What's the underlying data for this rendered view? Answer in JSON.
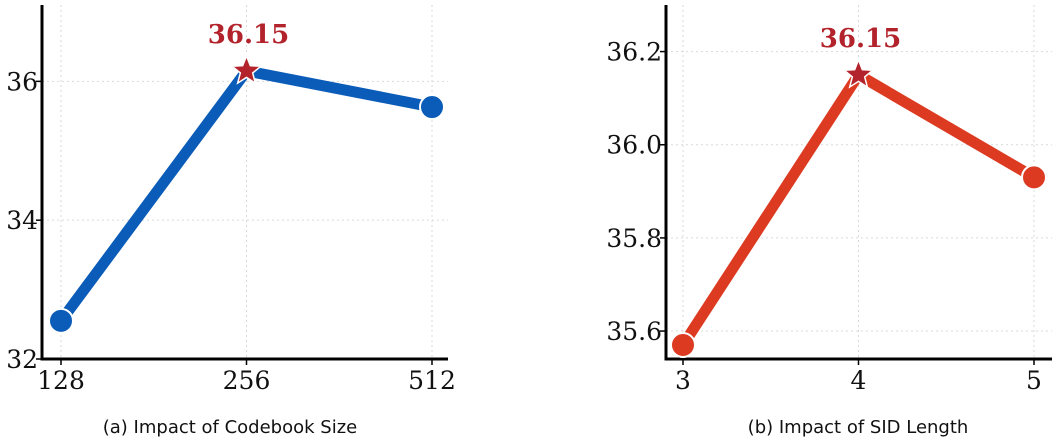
{
  "chart_data": [
    {
      "type": "line",
      "title": "",
      "xlabel": "",
      "ylabel": "",
      "caption": "(a) Impact of Codebook Size",
      "categories": [
        "128",
        "256",
        "512"
      ],
      "values": [
        32.55,
        36.15,
        35.63
      ],
      "ylim": [
        32,
        37.1
      ],
      "yticks": [
        32,
        34,
        36
      ],
      "ytick_labels": [
        "32",
        "34",
        "36"
      ],
      "highlight_index": 1,
      "highlight_label": "36.15",
      "color": "#0a5cb8",
      "highlight_color": "#b3232b",
      "grid": true,
      "legend": "none"
    },
    {
      "type": "line",
      "title": "",
      "xlabel": "",
      "ylabel": "",
      "caption": "(b) Impact of SID Length",
      "categories": [
        "3",
        "4",
        "5"
      ],
      "values": [
        35.57,
        36.15,
        35.93
      ],
      "ylim": [
        35.54,
        36.3
      ],
      "yticks": [
        35.6,
        35.8,
        36.0,
        36.2
      ],
      "ytick_labels": [
        "35.6",
        "35.8",
        "36.0",
        "36.2"
      ],
      "highlight_index": 1,
      "highlight_label": "36.15",
      "color": "#dd3a22",
      "highlight_color": "#b3232b",
      "grid": true,
      "legend": "none"
    }
  ]
}
